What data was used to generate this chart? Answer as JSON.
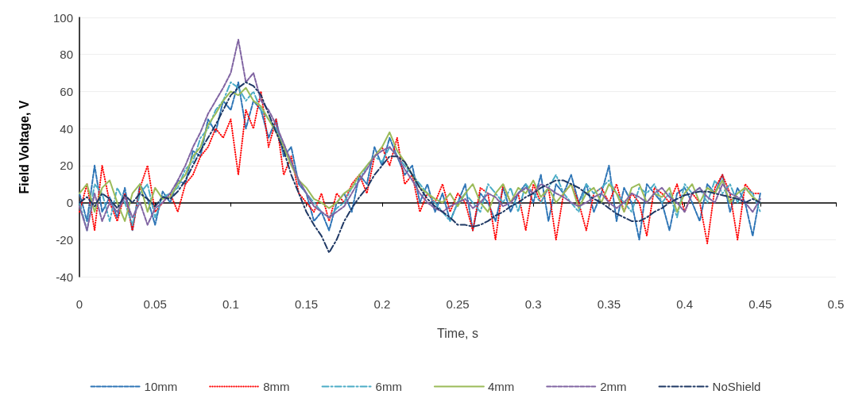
{
  "chart_data": {
    "type": "line",
    "xlabel": "Time, s",
    "ylabel": "Field Voltage, V",
    "x": [
      0,
      0.005,
      0.01,
      0.015,
      0.02,
      0.025,
      0.03,
      0.035,
      0.04,
      0.045,
      0.05,
      0.055,
      0.06,
      0.065,
      0.07,
      0.075,
      0.08,
      0.085,
      0.09,
      0.095,
      0.1,
      0.105,
      0.11,
      0.115,
      0.12,
      0.125,
      0.13,
      0.135,
      0.14,
      0.145,
      0.15,
      0.155,
      0.16,
      0.165,
      0.17,
      0.175,
      0.18,
      0.185,
      0.19,
      0.195,
      0.2,
      0.205,
      0.21,
      0.215,
      0.22,
      0.225,
      0.23,
      0.235,
      0.24,
      0.245,
      0.25,
      0.255,
      0.26,
      0.265,
      0.27,
      0.275,
      0.28,
      0.285,
      0.29,
      0.295,
      0.3,
      0.305,
      0.31,
      0.315,
      0.32,
      0.325,
      0.33,
      0.335,
      0.34,
      0.345,
      0.35,
      0.355,
      0.36,
      0.365,
      0.37,
      0.375,
      0.38,
      0.385,
      0.39,
      0.395,
      0.4,
      0.405,
      0.41,
      0.415,
      0.42,
      0.425,
      0.43,
      0.435,
      0.44,
      0.445,
      0.45
    ],
    "series": [
      {
        "name": "10mm",
        "color": "#2e75b6",
        "line_style": "dashed",
        "values": [
          5,
          -10,
          20,
          -5,
          3,
          -8,
          8,
          -15,
          10,
          2,
          -12,
          6,
          0,
          12,
          10,
          28,
          25,
          45,
          38,
          55,
          50,
          65,
          40,
          55,
          50,
          35,
          45,
          25,
          30,
          10,
          5,
          -10,
          -5,
          -15,
          0,
          5,
          -5,
          15,
          10,
          30,
          20,
          35,
          25,
          15,
          20,
          0,
          10,
          -5,
          5,
          -10,
          0,
          10,
          -15,
          5,
          0,
          -10,
          8,
          -5,
          5,
          10,
          0,
          15,
          -10,
          10,
          5,
          15,
          0,
          10,
          -5,
          5,
          20,
          -10,
          8,
          0,
          -20,
          10,
          5,
          0,
          -15,
          5,
          8,
          0,
          -10,
          10,
          5,
          15,
          -5,
          8,
          0,
          -18,
          5
        ]
      },
      {
        "name": "8mm",
        "color": "#ff0000",
        "line_style": "dotted",
        "values": [
          -5,
          10,
          -15,
          20,
          0,
          -10,
          5,
          -15,
          8,
          20,
          -5,
          0,
          5,
          -5,
          10,
          15,
          25,
          30,
          40,
          35,
          45,
          15,
          50,
          40,
          60,
          30,
          45,
          15,
          25,
          5,
          0,
          -5,
          5,
          -10,
          5,
          0,
          10,
          15,
          5,
          25,
          30,
          20,
          35,
          10,
          15,
          -5,
          5,
          0,
          10,
          -5,
          5,
          0,
          -15,
          8,
          5,
          -20,
          10,
          0,
          5,
          -15,
          10,
          0,
          8,
          -20,
          5,
          10,
          0,
          -15,
          5,
          8,
          0,
          10,
          -5,
          5,
          0,
          -18,
          8,
          5,
          0,
          10,
          -5,
          5,
          0,
          -22,
          8,
          15,
          5,
          -20,
          10,
          5,
          5
        ]
      },
      {
        "name": "6mm",
        "color": "#4bacc6",
        "line_style": "dashdot",
        "values": [
          0,
          -15,
          10,
          5,
          -10,
          8,
          0,
          -12,
          5,
          10,
          -8,
          3,
          5,
          8,
          18,
          22,
          35,
          40,
          50,
          55,
          65,
          62,
          55,
          60,
          50,
          45,
          40,
          30,
          22,
          12,
          5,
          0,
          -5,
          -8,
          -3,
          0,
          8,
          12,
          20,
          25,
          22,
          30,
          25,
          20,
          15,
          10,
          5,
          0,
          -5,
          -10,
          0,
          5,
          0,
          -5,
          10,
          5,
          0,
          8,
          -5,
          10,
          5,
          0,
          8,
          15,
          5,
          0,
          -5,
          10,
          5,
          8,
          12,
          5,
          0,
          -5,
          8,
          5,
          10,
          0,
          5,
          -8,
          10,
          5,
          8,
          0,
          12,
          5,
          10,
          0,
          8,
          5,
          -5
        ]
      },
      {
        "name": "4mm",
        "color": "#9bbb59",
        "line_style": "solid",
        "values": [
          5,
          10,
          -5,
          8,
          12,
          0,
          -10,
          5,
          10,
          -5,
          8,
          2,
          3,
          10,
          15,
          25,
          30,
          42,
          48,
          55,
          60,
          58,
          62,
          55,
          52,
          45,
          38,
          30,
          20,
          12,
          8,
          2,
          0,
          -3,
          0,
          5,
          8,
          15,
          20,
          25,
          30,
          38,
          28,
          22,
          15,
          8,
          5,
          2,
          0,
          5,
          -2,
          5,
          10,
          0,
          -5,
          5,
          10,
          0,
          8,
          5,
          12,
          3,
          8,
          0,
          5,
          10,
          -3,
          5,
          8,
          0,
          10,
          5,
          -5,
          8,
          10,
          0,
          5,
          3,
          8,
          -5,
          5,
          10,
          0,
          8,
          5,
          12,
          0,
          5,
          8,
          3,
          0
        ]
      },
      {
        "name": "2mm",
        "color": "#8064a2",
        "line_style": "dashed",
        "values": [
          -2,
          -15,
          5,
          -10,
          0,
          -5,
          3,
          -8,
          0,
          -12,
          -3,
          0,
          5,
          12,
          20,
          30,
          38,
          48,
          55,
          62,
          70,
          88,
          65,
          70,
          55,
          50,
          42,
          32,
          22,
          12,
          5,
          -2,
          -5,
          -8,
          -5,
          -2,
          5,
          12,
          18,
          25,
          28,
          30,
          25,
          18,
          12,
          5,
          0,
          -3,
          -5,
          -2,
          0,
          2,
          -3,
          0,
          5,
          3,
          -2,
          0,
          5,
          8,
          5,
          10,
          8,
          5,
          3,
          0,
          -2,
          0,
          3,
          5,
          0,
          -3,
          0,
          5,
          3,
          0,
          5,
          8,
          3,
          0,
          -5,
          5,
          8,
          3,
          0,
          10,
          5,
          3,
          0,
          -5,
          2
        ]
      },
      {
        "name": "NoShield",
        "color": "#1f3864",
        "line_style": "dashdot",
        "values": [
          0,
          3,
          -2,
          5,
          2,
          -3,
          4,
          0,
          5,
          2,
          -2,
          3,
          2,
          6,
          12,
          20,
          28,
          35,
          42,
          50,
          58,
          62,
          65,
          63,
          58,
          48,
          38,
          28,
          15,
          5,
          -5,
          -12,
          -18,
          -27,
          -20,
          -10,
          -3,
          3,
          8,
          15,
          20,
          25,
          25,
          22,
          15,
          8,
          2,
          -2,
          -5,
          -8,
          -12,
          -12,
          -13,
          -12,
          -10,
          -7,
          -5,
          -2,
          0,
          3,
          5,
          8,
          10,
          12,
          12,
          10,
          8,
          5,
          2,
          0,
          -3,
          -6,
          -8,
          -10,
          -10,
          -8,
          -5,
          -3,
          0,
          2,
          4,
          5,
          6,
          6,
          5,
          4,
          3,
          2,
          0,
          2,
          0
        ]
      }
    ],
    "xlim": [
      0,
      0.5
    ],
    "xticks": [
      0,
      0.05,
      0.1,
      0.15,
      0.2,
      0.25,
      0.3,
      0.35,
      0.4,
      0.45,
      0.5
    ],
    "ylim": [
      -40,
      100
    ],
    "yticks": [
      -40,
      -20,
      0,
      20,
      40,
      60,
      80,
      100
    ],
    "grid": "y",
    "legend": "bottom",
    "marker": "none"
  }
}
